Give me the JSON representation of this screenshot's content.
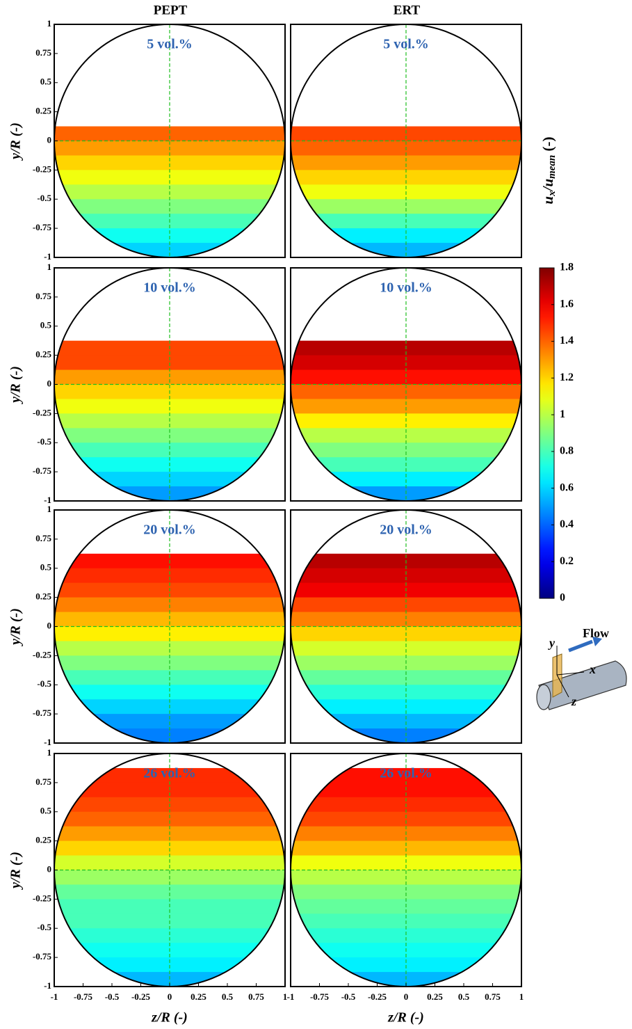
{
  "column_titles": [
    "PEPT",
    "ERT"
  ],
  "chart_data": [
    {
      "type": "heatmap",
      "title": "5 vol.%",
      "ylabel": "y/R (-)",
      "xlim": [
        -1,
        1
      ],
      "ylim": [
        -1,
        1
      ],
      "yticks": [
        1,
        0.75,
        0.5,
        0.25,
        0,
        -0.25,
        -0.5,
        -0.75,
        -1
      ],
      "y": [
        0.0625,
        -0.0625,
        -0.1875,
        -0.3125,
        -0.4375,
        -0.5625,
        -0.6875,
        -0.8125,
        -0.9375
      ],
      "values": [
        1.4,
        1.3,
        1.2,
        1.1,
        1.0,
        0.9,
        0.8,
        0.7,
        0.6
      ]
    },
    {
      "type": "heatmap",
      "title": "5 vol.%",
      "xlim": [
        -1,
        1
      ],
      "ylim": [
        -1,
        1
      ],
      "y": [
        0.0625,
        -0.0625,
        -0.1875,
        -0.3125,
        -0.4375,
        -0.5625,
        -0.6875,
        -0.8125,
        -0.9375
      ],
      "values": [
        1.45,
        1.4,
        1.3,
        1.2,
        1.1,
        0.95,
        0.8,
        0.65,
        0.55
      ]
    },
    {
      "type": "heatmap",
      "title": "10 vol.%",
      "ylabel": "y/R (-)",
      "xlim": [
        -1,
        1
      ],
      "ylim": [
        -1,
        1
      ],
      "yticks": [
        1,
        0.75,
        0.5,
        0.25,
        0,
        -0.25,
        -0.5,
        -0.75,
        -1
      ],
      "y": [
        0.3125,
        0.1875,
        0.0625,
        -0.0625,
        -0.1875,
        -0.3125,
        -0.4375,
        -0.5625,
        -0.6875,
        -0.8125,
        -0.9375
      ],
      "values": [
        1.45,
        1.45,
        1.3,
        1.2,
        1.1,
        1.0,
        0.9,
        0.8,
        0.7,
        0.6,
        0.5
      ]
    },
    {
      "type": "heatmap",
      "title": "10 vol.%",
      "xlim": [
        -1,
        1
      ],
      "ylim": [
        -1,
        1
      ],
      "y": [
        0.3125,
        0.1875,
        0.0625,
        -0.0625,
        -0.1875,
        -0.3125,
        -0.4375,
        -0.5625,
        -0.6875,
        -0.8125,
        -0.9375
      ],
      "values": [
        1.7,
        1.65,
        1.55,
        1.4,
        1.3,
        1.15,
        1.0,
        0.9,
        0.8,
        0.65,
        0.5
      ]
    },
    {
      "type": "heatmap",
      "title": "20 vol.%",
      "ylabel": "y/R (-)",
      "xlim": [
        -1,
        1
      ],
      "ylim": [
        -1,
        1
      ],
      "yticks": [
        1,
        0.75,
        0.5,
        0.25,
        0,
        -0.25,
        -0.5,
        -0.75,
        -1
      ],
      "y": [
        0.5625,
        0.4375,
        0.3125,
        0.1875,
        0.0625,
        -0.0625,
        -0.1875,
        -0.3125,
        -0.4375,
        -0.5625,
        -0.6875,
        -0.8125,
        -0.9375
      ],
      "values": [
        1.55,
        1.5,
        1.45,
        1.35,
        1.25,
        1.15,
        1.0,
        0.9,
        0.8,
        0.7,
        0.6,
        0.5,
        0.45
      ]
    },
    {
      "type": "heatmap",
      "title": "20 vol.%",
      "xlim": [
        -1,
        1
      ],
      "ylim": [
        -1,
        1
      ],
      "y": [
        0.5625,
        0.4375,
        0.3125,
        0.1875,
        0.0625,
        -0.0625,
        -0.1875,
        -0.3125,
        -0.4375,
        -0.5625,
        -0.6875,
        -0.8125,
        -0.9375
      ],
      "values": [
        1.7,
        1.65,
        1.6,
        1.45,
        1.35,
        1.2,
        1.05,
        0.95,
        0.85,
        0.75,
        0.65,
        0.55,
        0.45
      ]
    },
    {
      "type": "heatmap",
      "title": "26 vol.%",
      "ylabel": "y/R (-)",
      "xlabel": "z/R (-)",
      "xlim": [
        -1,
        1
      ],
      "ylim": [
        -1,
        1
      ],
      "yticks": [
        1,
        0.75,
        0.5,
        0.25,
        0,
        -0.25,
        -0.5,
        -0.75,
        -1
      ],
      "xticks": [
        -1,
        -0.75,
        -0.5,
        -0.25,
        0,
        0.25,
        0.5,
        0.75,
        1
      ],
      "y": [
        0.8125,
        0.6875,
        0.5625,
        0.4375,
        0.3125,
        0.1875,
        0.0625,
        -0.0625,
        -0.1875,
        -0.3125,
        -0.4375,
        -0.5625,
        -0.6875,
        -0.8125,
        -0.9375
      ],
      "values": [
        1.5,
        1.5,
        1.45,
        1.4,
        1.3,
        1.2,
        1.05,
        0.95,
        0.85,
        0.8,
        0.8,
        0.75,
        0.7,
        0.65,
        0.55
      ]
    },
    {
      "type": "heatmap",
      "title": "26 vol.%",
      "xlabel": "z/R (-)",
      "xlim": [
        -1,
        1
      ],
      "ylim": [
        -1,
        1
      ],
      "xticks": [
        -1,
        -0.75,
        -0.5,
        -0.25,
        0,
        0.25,
        0.5,
        0.75,
        1
      ],
      "y": [
        0.8125,
        0.6875,
        0.5625,
        0.4375,
        0.3125,
        0.1875,
        0.0625,
        -0.0625,
        -0.1875,
        -0.3125,
        -0.4375,
        -0.5625,
        -0.6875,
        -0.8125,
        -0.9375
      ],
      "values": [
        1.55,
        1.55,
        1.5,
        1.45,
        1.35,
        1.25,
        1.1,
        1.0,
        0.9,
        0.85,
        0.8,
        0.75,
        0.7,
        0.65,
        0.55
      ]
    },
    {
      "type": "colorbar",
      "colormap": "jet",
      "lim": [
        0,
        1.8
      ],
      "ticks": [
        1.8,
        1.6,
        1.4,
        1.2,
        1,
        0.8,
        0.6,
        0.4,
        0.2,
        0
      ],
      "label": {
        "main": "u",
        "sub": "x",
        "sep": "/u",
        "sub2": "mean",
        "unit": " (-)"
      }
    }
  ],
  "diagram": {
    "flow": "Flow",
    "x": "x",
    "y": "y",
    "z": "z"
  }
}
